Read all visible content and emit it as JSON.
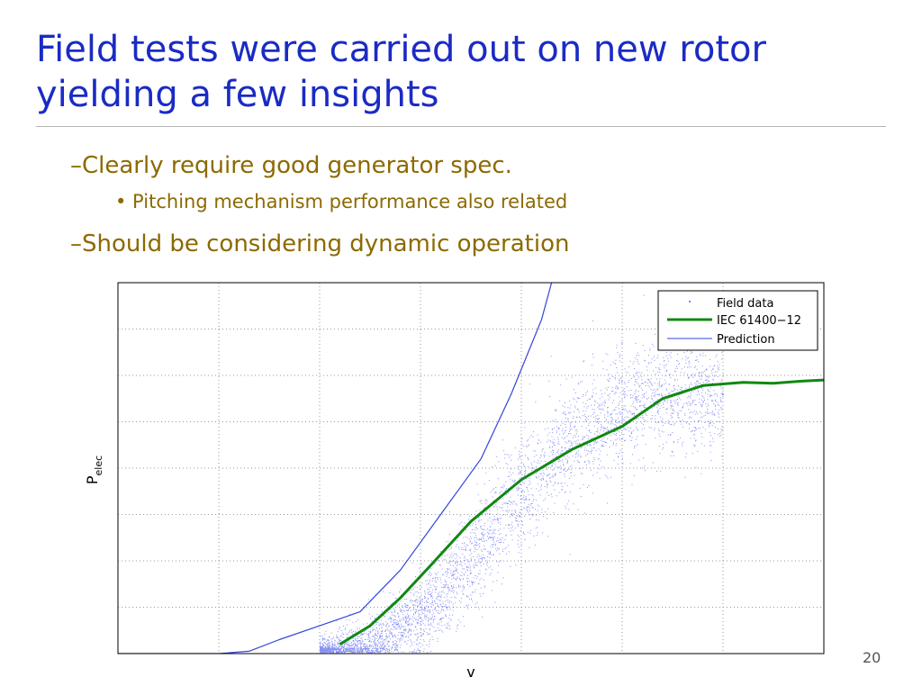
{
  "slide": {
    "title": "Field tests were carried out on new rotor yielding a few insights",
    "bullets": [
      "–Clearly require good generator spec.",
      "• Pitching mechanism performance also related",
      "–Should be considering dynamic operation"
    ],
    "page_number": "20"
  },
  "colors": {
    "title": "#1a2bc4",
    "bullet_text": "#8c6a00",
    "field_data": "#2233ee",
    "iec": "#118811",
    "prediction": "#3344dd"
  },
  "chart_data": {
    "type": "scatter",
    "xlabel": "v",
    "ylabel": "P",
    "ylabel_subscript": "elec",
    "xlim": [
      0,
      7
    ],
    "ylim": [
      0,
      8
    ],
    "x_ticks_shown": false,
    "y_ticks_shown": false,
    "grid": true,
    "legend_position": "top-right",
    "series": [
      {
        "name": "Field data",
        "kind": "scatter",
        "approx_trend": [
          [
            2.0,
            0.0
          ],
          [
            2.5,
            0.2
          ],
          [
            3.0,
            0.8
          ],
          [
            3.5,
            2.0
          ],
          [
            4.0,
            3.5
          ],
          [
            4.5,
            4.6
          ],
          [
            5.0,
            5.3
          ],
          [
            5.5,
            5.6
          ],
          [
            6.0,
            5.5
          ]
        ],
        "spread": "wide, increasing with v"
      },
      {
        "name": "IEC 61400−12",
        "kind": "line",
        "x": [
          2.2,
          2.5,
          2.8,
          3.1,
          3.5,
          4.0,
          4.5,
          5.0,
          5.4,
          5.8,
          6.2,
          6.5,
          6.8,
          7.0
        ],
        "y": [
          0.2,
          0.6,
          1.2,
          1.9,
          2.85,
          3.75,
          4.4,
          4.9,
          5.5,
          5.78,
          5.85,
          5.83,
          5.88,
          5.9
        ]
      },
      {
        "name": "Prediction",
        "kind": "line",
        "x": [
          0.0,
          1.0,
          1.3,
          1.6,
          2.0,
          2.4,
          2.8,
          3.2,
          3.6,
          3.9,
          4.2,
          4.3
        ],
        "y": [
          0.0,
          0.0,
          0.05,
          0.3,
          0.6,
          0.9,
          1.8,
          3.0,
          4.2,
          5.6,
          7.2,
          8.0
        ]
      }
    ]
  }
}
